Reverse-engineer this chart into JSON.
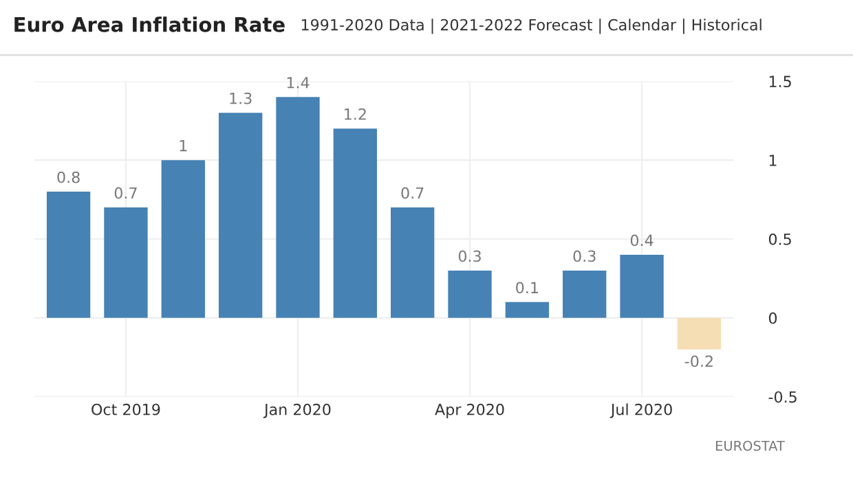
{
  "chart_data": {
    "type": "bar",
    "title": "Euro Area Inflation Rate",
    "subtitle": "1991-2020 Data | 2021-2022 Forecast | Calendar | Historical",
    "categories": [
      null,
      "Oct 2019",
      null,
      null,
      "Jan 2020",
      null,
      null,
      "Apr 2020",
      null,
      null,
      "Jul 2020",
      null
    ],
    "values": [
      0.8,
      0.7,
      1,
      1.3,
      1.4,
      1.2,
      0.7,
      0.3,
      0.1,
      0.3,
      0.4,
      -0.2
    ],
    "colors": [
      "#4682b4",
      "#4682b4",
      "#4682b4",
      "#4682b4",
      "#4682b4",
      "#4682b4",
      "#4682b4",
      "#4682b4",
      "#4682b4",
      "#4682b4",
      "#4682b4",
      "#f5deb3"
    ],
    "ylim": [
      -0.5,
      1.5
    ],
    "yticks": [
      -0.5,
      0,
      0.5,
      1,
      1.5
    ],
    "grid": true,
    "data_labels": true,
    "annotations": [
      "EUROSTAT"
    ]
  }
}
